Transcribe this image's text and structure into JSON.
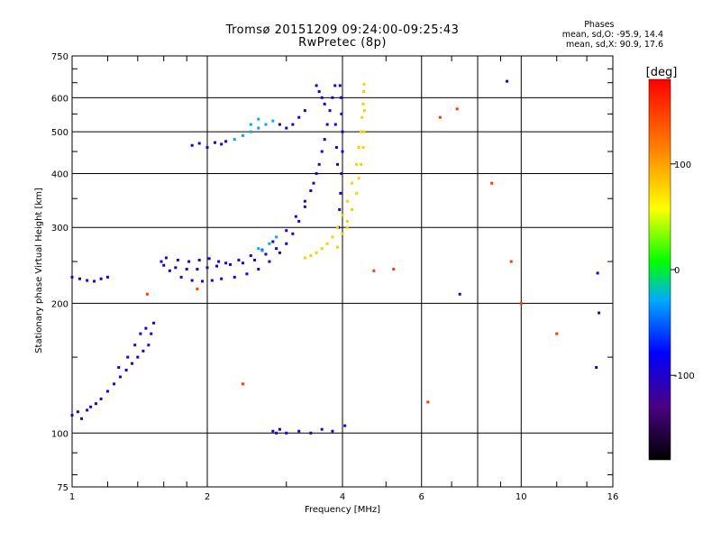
{
  "header": {
    "line1": "Tromsø 20151209 09:24:00-09:25:43",
    "line2": "RwPretec (8p)"
  },
  "phases_box": {
    "title": "Phases",
    "line_o": "mean, sd,O: -95.9, 14.4",
    "line_x": "mean, sd,X:  90.9, 17.6"
  },
  "chart_data": {
    "type": "scatter",
    "xlabel": "Frequency [MHz]",
    "ylabel": "Stationary phase Virtual Height [km]",
    "x_scale": "log",
    "y_scale": "log",
    "xlim": [
      1,
      16
    ],
    "ylim": [
      75,
      750
    ],
    "x_ticks": [
      1,
      2,
      4,
      6,
      8,
      10,
      16
    ],
    "x_tick_labels": [
      "1",
      "2",
      "4",
      "6",
      "",
      "10",
      "16"
    ],
    "y_ticks": [
      75,
      100,
      200,
      300,
      400,
      500,
      600,
      750
    ],
    "y_tick_labels": [
      "75",
      "100",
      "200",
      "300",
      "400",
      "500",
      "600",
      "750"
    ],
    "grid": true,
    "colorbar": {
      "label": "[deg]",
      "range": [
        -180,
        180
      ],
      "ticks": [
        100,
        0,
        -100
      ],
      "tick_labels": [
        "100",
        "0",
        "-100"
      ]
    },
    "series": [
      {
        "name": "",
        "color_phase": -100,
        "points": [
          [
            1.0,
            110
          ],
          [
            1.03,
            112
          ],
          [
            1.05,
            108
          ],
          [
            1.08,
            113
          ],
          [
            1.1,
            115
          ],
          [
            1.13,
            117
          ],
          [
            1.16,
            120
          ],
          [
            1.2,
            125
          ],
          [
            1.24,
            130
          ],
          [
            1.28,
            135
          ],
          [
            1.32,
            140
          ],
          [
            1.36,
            145
          ],
          [
            1.4,
            150
          ],
          [
            1.44,
            155
          ],
          [
            1.48,
            160
          ],
          [
            1.5,
            170
          ],
          [
            1.52,
            180
          ],
          [
            1.38,
            160
          ],
          [
            1.42,
            170
          ],
          [
            1.46,
            175
          ],
          [
            1.33,
            150
          ],
          [
            1.27,
            142
          ],
          [
            1.0,
            230
          ],
          [
            1.04,
            228
          ],
          [
            1.08,
            226
          ],
          [
            1.12,
            225
          ],
          [
            1.16,
            228
          ],
          [
            1.2,
            230
          ],
          [
            1.58,
            250
          ],
          [
            1.65,
            238
          ],
          [
            1.75,
            230
          ],
          [
            1.85,
            226
          ],
          [
            1.95,
            225
          ],
          [
            2.05,
            226
          ],
          [
            2.15,
            228
          ],
          [
            2.3,
            230
          ],
          [
            2.45,
            234
          ],
          [
            2.6,
            240
          ],
          [
            2.75,
            250
          ],
          [
            2.9,
            262
          ],
          [
            3.0,
            275
          ],
          [
            3.1,
            290
          ],
          [
            3.2,
            310
          ],
          [
            3.3,
            335
          ],
          [
            3.4,
            365
          ],
          [
            3.5,
            400
          ],
          [
            3.6,
            450
          ],
          [
            3.7,
            520
          ],
          [
            3.8,
            600
          ],
          [
            3.85,
            640
          ],
          [
            1.6,
            245
          ],
          [
            1.7,
            242
          ],
          [
            1.8,
            240
          ],
          [
            1.9,
            240
          ],
          [
            2.0,
            242
          ],
          [
            2.1,
            244
          ],
          [
            2.2,
            248
          ],
          [
            2.35,
            252
          ],
          [
            2.5,
            258
          ],
          [
            2.65,
            266
          ],
          [
            2.8,
            278
          ],
          [
            3.0,
            295
          ],
          [
            3.15,
            318
          ],
          [
            3.3,
            345
          ],
          [
            3.45,
            380
          ],
          [
            3.55,
            420
          ],
          [
            3.65,
            480
          ],
          [
            3.75,
            560
          ],
          [
            1.62,
            255
          ],
          [
            1.72,
            252
          ],
          [
            1.82,
            250
          ],
          [
            1.92,
            252
          ],
          [
            2.02,
            254
          ],
          [
            2.12,
            250
          ],
          [
            2.25,
            246
          ],
          [
            2.4,
            248
          ],
          [
            2.55,
            252
          ],
          [
            2.7,
            260
          ],
          [
            2.85,
            268
          ],
          [
            1.85,
            465
          ],
          [
            1.92,
            470
          ],
          [
            2.0,
            460
          ],
          [
            2.08,
            472
          ],
          [
            2.15,
            468
          ],
          [
            2.2,
            475
          ],
          [
            3.5,
            640
          ],
          [
            3.55,
            620
          ],
          [
            3.6,
            600
          ],
          [
            3.65,
            580
          ],
          [
            3.3,
            560
          ],
          [
            3.2,
            540
          ],
          [
            3.1,
            520
          ],
          [
            3.0,
            510
          ],
          [
            2.9,
            520
          ],
          [
            3.95,
            640
          ],
          [
            3.97,
            600
          ],
          [
            3.98,
            550
          ],
          [
            4.0,
            500
          ],
          [
            4.0,
            450
          ],
          [
            3.98,
            400
          ],
          [
            3.96,
            360
          ],
          [
            3.94,
            330
          ],
          [
            3.92,
            300
          ],
          [
            3.9,
            420
          ],
          [
            3.88,
            460
          ],
          [
            3.86,
            520
          ],
          [
            2.8,
            101
          ],
          [
            2.85,
            100
          ],
          [
            2.9,
            102
          ],
          [
            3.0,
            100
          ],
          [
            3.2,
            101
          ],
          [
            3.4,
            100
          ],
          [
            3.6,
            102
          ],
          [
            3.8,
            101
          ],
          [
            4.05,
            104
          ],
          [
            7.3,
            210
          ],
          [
            9.3,
            655
          ],
          [
            14.8,
            235
          ],
          [
            14.9,
            190
          ],
          [
            14.7,
            142
          ]
        ]
      },
      {
        "name": "",
        "color_phase": -30,
        "points": [
          [
            2.3,
            480
          ],
          [
            2.4,
            490
          ],
          [
            2.5,
            500
          ],
          [
            2.6,
            510
          ],
          [
            2.7,
            520
          ],
          [
            2.8,
            530
          ],
          [
            2.5,
            520
          ],
          [
            2.6,
            535
          ],
          [
            2.65,
            265
          ],
          [
            2.75,
            275
          ],
          [
            2.85,
            285
          ],
          [
            2.6,
            268
          ]
        ]
      },
      {
        "name": "",
        "color_phase": 80,
        "points": [
          [
            3.3,
            255
          ],
          [
            3.4,
            258
          ],
          [
            3.5,
            262
          ],
          [
            3.6,
            268
          ],
          [
            3.7,
            275
          ],
          [
            3.8,
            285
          ],
          [
            3.9,
            300
          ],
          [
            4.0,
            320
          ],
          [
            4.1,
            345
          ],
          [
            4.2,
            380
          ],
          [
            4.3,
            420
          ],
          [
            4.35,
            460
          ],
          [
            4.4,
            500
          ],
          [
            4.42,
            540
          ],
          [
            4.45,
            580
          ],
          [
            4.46,
            620
          ],
          [
            4.47,
            645
          ],
          [
            4.1,
            300
          ],
          [
            4.2,
            330
          ],
          [
            4.3,
            360
          ],
          [
            4.35,
            390
          ],
          [
            4.4,
            420
          ],
          [
            4.45,
            460
          ],
          [
            4.47,
            500
          ],
          [
            4.48,
            560
          ],
          [
            3.9,
            270
          ],
          [
            4.0,
            290
          ],
          [
            4.1,
            310
          ]
        ]
      },
      {
        "name": "",
        "color_phase": 150,
        "points": [
          [
            1.47,
            210
          ],
          [
            4.7,
            238
          ],
          [
            5.2,
            240
          ],
          [
            6.6,
            540
          ],
          [
            7.2,
            565
          ],
          [
            8.6,
            380
          ],
          [
            9.5,
            250
          ],
          [
            10.0,
            200
          ],
          [
            12.0,
            170
          ],
          [
            1.9,
            216
          ],
          [
            2.4,
            130
          ],
          [
            6.2,
            118
          ]
        ]
      }
    ]
  }
}
